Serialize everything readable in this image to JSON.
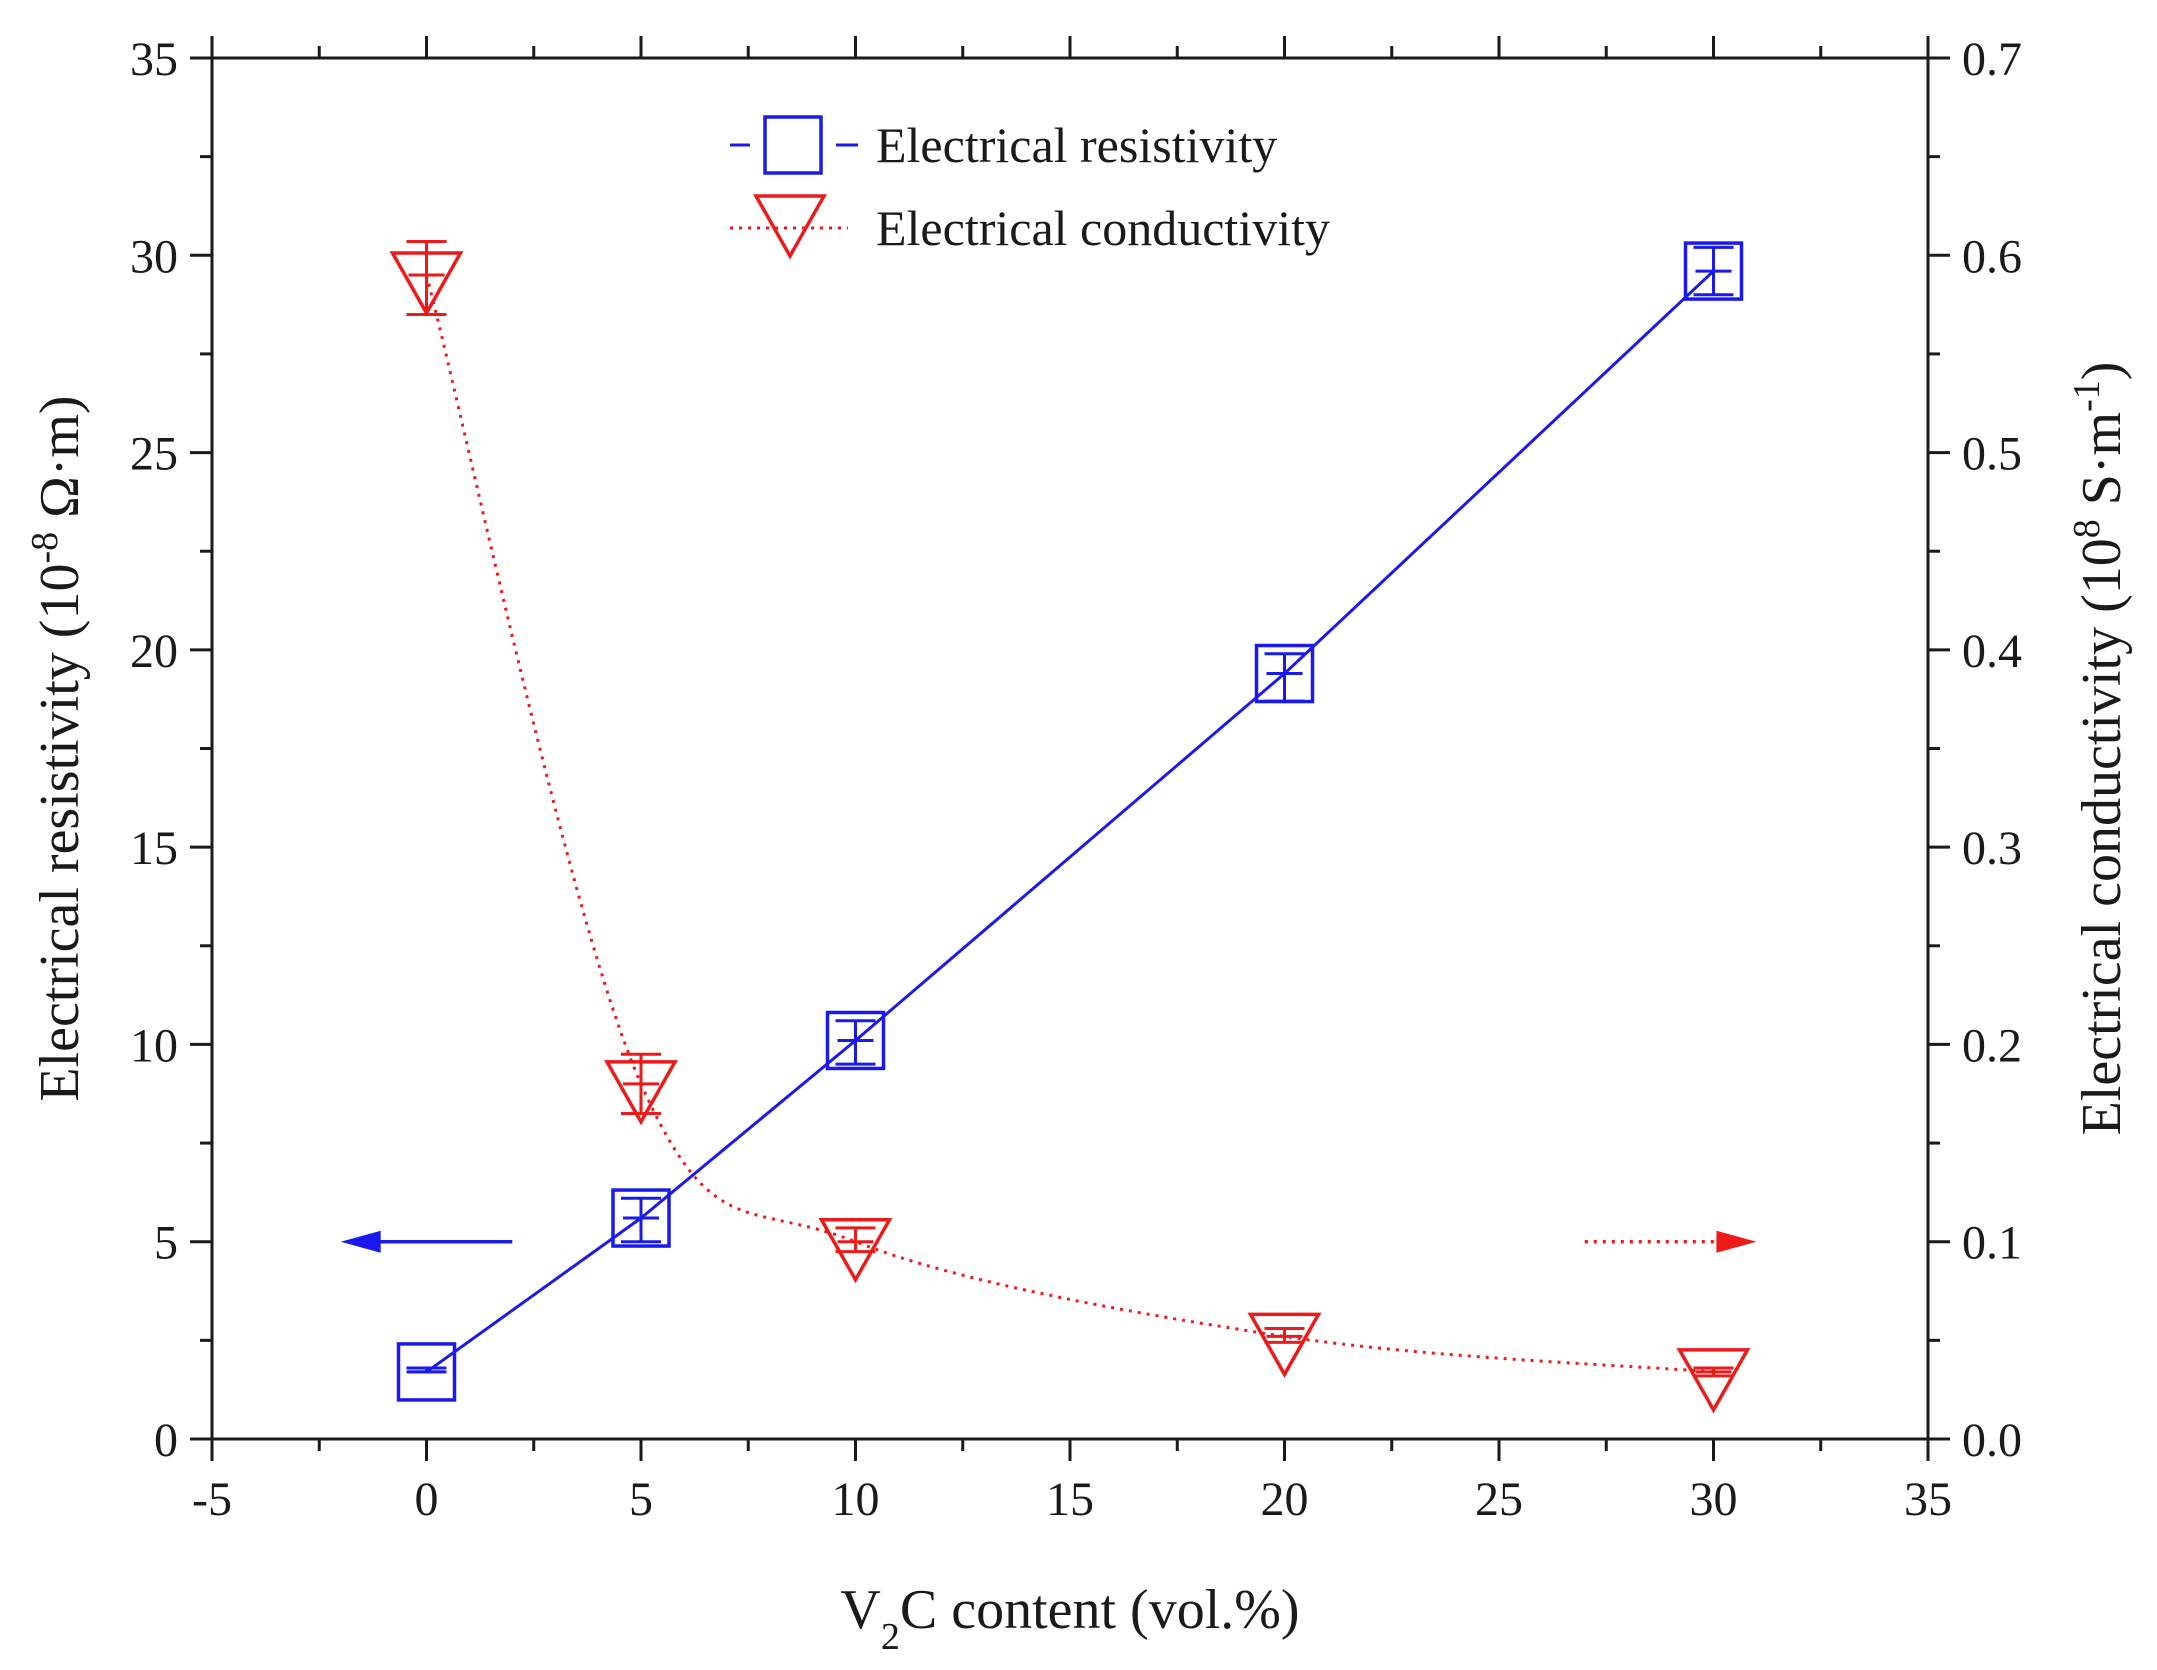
{
  "chart_data": {
    "type": "line",
    "title": "",
    "xlabel": {
      "main": "V",
      "sub": "2",
      "rest": "C content (vol.%)"
    },
    "ylabel_left": {
      "main": "Electrical resistivity (10",
      "sup": "-8",
      "rest": " Ω·m)"
    },
    "ylabel_right": {
      "main": "Electrical conductivity (10",
      "sup": "8",
      "mid": " S·m",
      "sup2": "-1",
      "rest": ")"
    },
    "xlim": [
      -5,
      35
    ],
    "ylim_left": [
      0,
      35
    ],
    "ylim_right": [
      0.0,
      0.7
    ],
    "x_ticks": [
      "-5",
      "0",
      "5",
      "10",
      "15",
      "20",
      "25",
      "30",
      "35"
    ],
    "x_tick_values": [
      -5,
      0,
      5,
      10,
      15,
      20,
      25,
      30,
      35
    ],
    "y_left_ticks": [
      "0",
      "5",
      "10",
      "15",
      "20",
      "25",
      "30",
      "35"
    ],
    "y_left_tick_values": [
      0,
      5,
      10,
      15,
      20,
      25,
      30,
      35
    ],
    "y_right_ticks": [
      "0.0",
      "0.1",
      "0.2",
      "0.3",
      "0.4",
      "0.5",
      "0.6",
      "0.7"
    ],
    "y_right_tick_values": [
      0.0,
      0.1,
      0.2,
      0.3,
      0.4,
      0.5,
      0.6,
      0.7
    ],
    "grid": false,
    "legend_position": "top-center",
    "series": [
      {
        "name": "Electrical resistivity",
        "axis": "left",
        "marker": "square",
        "line_style": "solid",
        "color": "#1a1aee",
        "x": [
          0,
          5,
          10,
          20,
          30
        ],
        "values": [
          1.7,
          5.6,
          10.1,
          19.4,
          29.6
        ],
        "err_low": [
          1.7,
          5.0,
          9.5,
          18.7,
          29.0
        ],
        "err_high": [
          1.8,
          6.1,
          10.6,
          19.9,
          30.2
        ]
      },
      {
        "name": "Electrical conductivity",
        "axis": "right",
        "marker": "triangle-down",
        "line_style": "dotted",
        "color": "#ee1a1a",
        "x": [
          0,
          5,
          10,
          20,
          30
        ],
        "values": [
          0.59,
          0.18,
          0.1,
          0.052,
          0.034
        ],
        "err_low": [
          0.57,
          0.165,
          0.095,
          0.049,
          0.032
        ],
        "err_high": [
          0.607,
          0.195,
          0.107,
          0.056,
          0.036
        ]
      }
    ],
    "annotations": [
      {
        "name": "left-axis-arrow",
        "points_to": "left",
        "color": "#1a1aee",
        "style": "solid",
        "x_range": [
          -2,
          2
        ],
        "y_left": 5
      },
      {
        "name": "right-axis-arrow",
        "points_to": "right",
        "color": "#ee1a1a",
        "style": "dotted",
        "x_range": [
          27,
          31
        ],
        "y_left": 5
      }
    ]
  }
}
